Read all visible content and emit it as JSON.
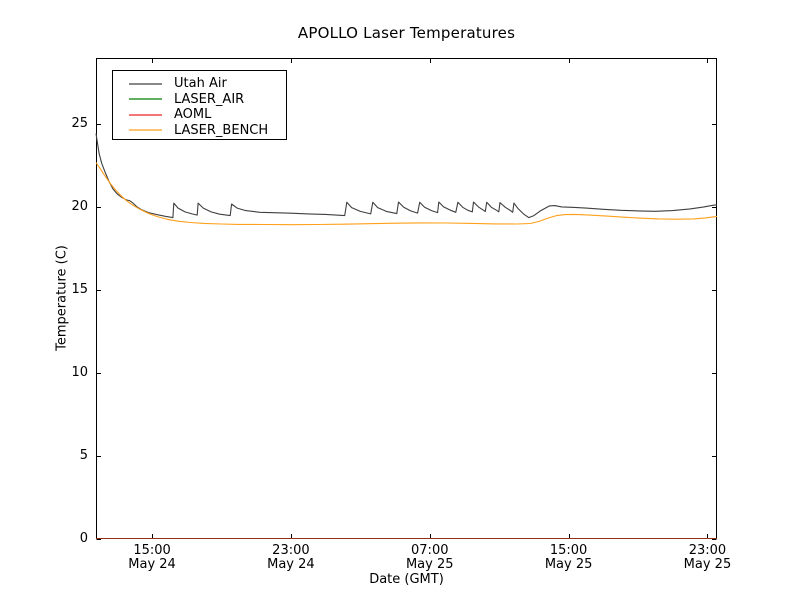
{
  "chart_data": {
    "type": "line",
    "title": "APOLLO Laser Temperatures",
    "xlabel": "Date (GMT)",
    "ylabel": "Temperature (C)",
    "x_unit": "hours since 1970-style day start, May 24 00:00 GMT = 0",
    "xlim": [
      11.77,
      47.55
    ],
    "ylim": [
      0,
      29
    ],
    "grid": false,
    "legend_position": "upper left",
    "yticks": [
      0,
      5,
      10,
      15,
      20,
      25
    ],
    "xticks": [
      {
        "t": 15,
        "time": "15:00",
        "date": "May 24"
      },
      {
        "t": 23,
        "time": "23:00",
        "date": "May 24"
      },
      {
        "t": 31,
        "time": "07:00",
        "date": "May 25"
      },
      {
        "t": 39,
        "time": "15:00",
        "date": "May 25"
      },
      {
        "t": 47,
        "time": "23:00",
        "date": "May 25"
      }
    ],
    "series": [
      {
        "name": "Utah Air",
        "color": "#3f3f3f",
        "points": [
          [
            11.77,
            24.45
          ],
          [
            11.85,
            23.9
          ],
          [
            11.95,
            23.25
          ],
          [
            12.1,
            22.65
          ],
          [
            12.3,
            22.1
          ],
          [
            12.5,
            21.6
          ],
          [
            12.75,
            21.1
          ],
          [
            13.0,
            20.8
          ],
          [
            13.25,
            20.6
          ],
          [
            13.5,
            20.45
          ],
          [
            13.7,
            20.4
          ],
          [
            13.9,
            20.25
          ],
          [
            14.1,
            20.05
          ],
          [
            14.4,
            19.85
          ],
          [
            14.8,
            19.68
          ],
          [
            15.3,
            19.55
          ],
          [
            15.8,
            19.45
          ],
          [
            16.2,
            19.38
          ],
          [
            16.25,
            20.25
          ],
          [
            16.5,
            19.95
          ],
          [
            16.9,
            19.72
          ],
          [
            17.3,
            19.6
          ],
          [
            17.6,
            19.53
          ],
          [
            17.65,
            20.25
          ],
          [
            17.95,
            19.95
          ],
          [
            18.4,
            19.72
          ],
          [
            18.9,
            19.58
          ],
          [
            19.5,
            19.5
          ],
          [
            19.58,
            20.2
          ],
          [
            19.9,
            19.95
          ],
          [
            20.4,
            19.8
          ],
          [
            21.2,
            19.7
          ],
          [
            22.0,
            19.67
          ],
          [
            23.0,
            19.64
          ],
          [
            24.0,
            19.6
          ],
          [
            25.0,
            19.57
          ],
          [
            26.1,
            19.5
          ],
          [
            26.22,
            20.3
          ],
          [
            26.5,
            19.98
          ],
          [
            27.0,
            19.75
          ],
          [
            27.6,
            19.6
          ],
          [
            27.72,
            20.3
          ],
          [
            28.0,
            19.98
          ],
          [
            28.5,
            19.75
          ],
          [
            29.1,
            19.62
          ],
          [
            29.2,
            20.32
          ],
          [
            29.5,
            20.0
          ],
          [
            29.9,
            19.78
          ],
          [
            30.3,
            19.65
          ],
          [
            30.42,
            20.3
          ],
          [
            30.7,
            20.0
          ],
          [
            31.1,
            19.8
          ],
          [
            31.45,
            19.68
          ],
          [
            31.52,
            20.32
          ],
          [
            31.8,
            20.02
          ],
          [
            32.2,
            19.82
          ],
          [
            32.5,
            19.7
          ],
          [
            32.62,
            20.3
          ],
          [
            32.9,
            20.0
          ],
          [
            33.2,
            19.82
          ],
          [
            33.45,
            19.72
          ],
          [
            33.52,
            20.32
          ],
          [
            33.8,
            20.02
          ],
          [
            34.1,
            19.82
          ],
          [
            34.2,
            19.74
          ],
          [
            34.28,
            20.3
          ],
          [
            34.55,
            20.0
          ],
          [
            34.85,
            19.82
          ],
          [
            34.98,
            19.73
          ],
          [
            35.05,
            20.28
          ],
          [
            35.35,
            20.0
          ],
          [
            35.65,
            19.8
          ],
          [
            35.78,
            19.7
          ],
          [
            35.85,
            20.25
          ],
          [
            36.1,
            19.9
          ],
          [
            36.4,
            19.6
          ],
          [
            36.7,
            19.38
          ],
          [
            37.0,
            19.5
          ],
          [
            37.4,
            19.8
          ],
          [
            37.9,
            20.08
          ],
          [
            38.2,
            20.1
          ],
          [
            38.6,
            20.02
          ],
          [
            39.2,
            20.0
          ],
          [
            40.0,
            19.95
          ],
          [
            41.0,
            19.88
          ],
          [
            42.0,
            19.82
          ],
          [
            43.0,
            19.78
          ],
          [
            44.0,
            19.76
          ],
          [
            45.0,
            19.8
          ],
          [
            46.0,
            19.9
          ],
          [
            46.8,
            20.02
          ],
          [
            47.3,
            20.12
          ],
          [
            47.55,
            20.15
          ]
        ]
      },
      {
        "name": "LASER_AIR",
        "color": "#008000",
        "points": [
          [
            11.77,
            0
          ],
          [
            47.55,
            0
          ]
        ]
      },
      {
        "name": "AOML",
        "color": "#ee2222",
        "points": [
          [
            11.77,
            0
          ],
          [
            47.55,
            0
          ]
        ]
      },
      {
        "name": "LASER_BENCH",
        "color": "#ff9f1a",
        "points": [
          [
            11.77,
            22.7
          ],
          [
            12.0,
            22.35
          ],
          [
            12.25,
            21.95
          ],
          [
            12.55,
            21.5
          ],
          [
            12.85,
            21.1
          ],
          [
            13.15,
            20.75
          ],
          [
            13.5,
            20.42
          ],
          [
            13.9,
            20.12
          ],
          [
            14.35,
            19.85
          ],
          [
            14.85,
            19.6
          ],
          [
            15.35,
            19.42
          ],
          [
            15.9,
            19.27
          ],
          [
            16.5,
            19.16
          ],
          [
            17.2,
            19.08
          ],
          [
            18.0,
            19.03
          ],
          [
            19.0,
            18.99
          ],
          [
            20.0,
            18.97
          ],
          [
            21.5,
            18.96
          ],
          [
            23.0,
            18.95
          ],
          [
            24.5,
            18.96
          ],
          [
            26.0,
            18.98
          ],
          [
            27.5,
            19.01
          ],
          [
            29.0,
            19.04
          ],
          [
            30.5,
            19.06
          ],
          [
            32.0,
            19.05
          ],
          [
            33.5,
            19.03
          ],
          [
            34.8,
            19.0
          ],
          [
            36.0,
            18.99
          ],
          [
            36.8,
            19.02
          ],
          [
            37.3,
            19.15
          ],
          [
            37.8,
            19.35
          ],
          [
            38.3,
            19.5
          ],
          [
            38.8,
            19.56
          ],
          [
            39.4,
            19.57
          ],
          [
            40.2,
            19.53
          ],
          [
            41.2,
            19.47
          ],
          [
            42.2,
            19.4
          ],
          [
            43.2,
            19.34
          ],
          [
            44.2,
            19.3
          ],
          [
            45.2,
            19.28
          ],
          [
            46.2,
            19.3
          ],
          [
            46.9,
            19.36
          ],
          [
            47.55,
            19.45
          ]
        ]
      }
    ]
  }
}
